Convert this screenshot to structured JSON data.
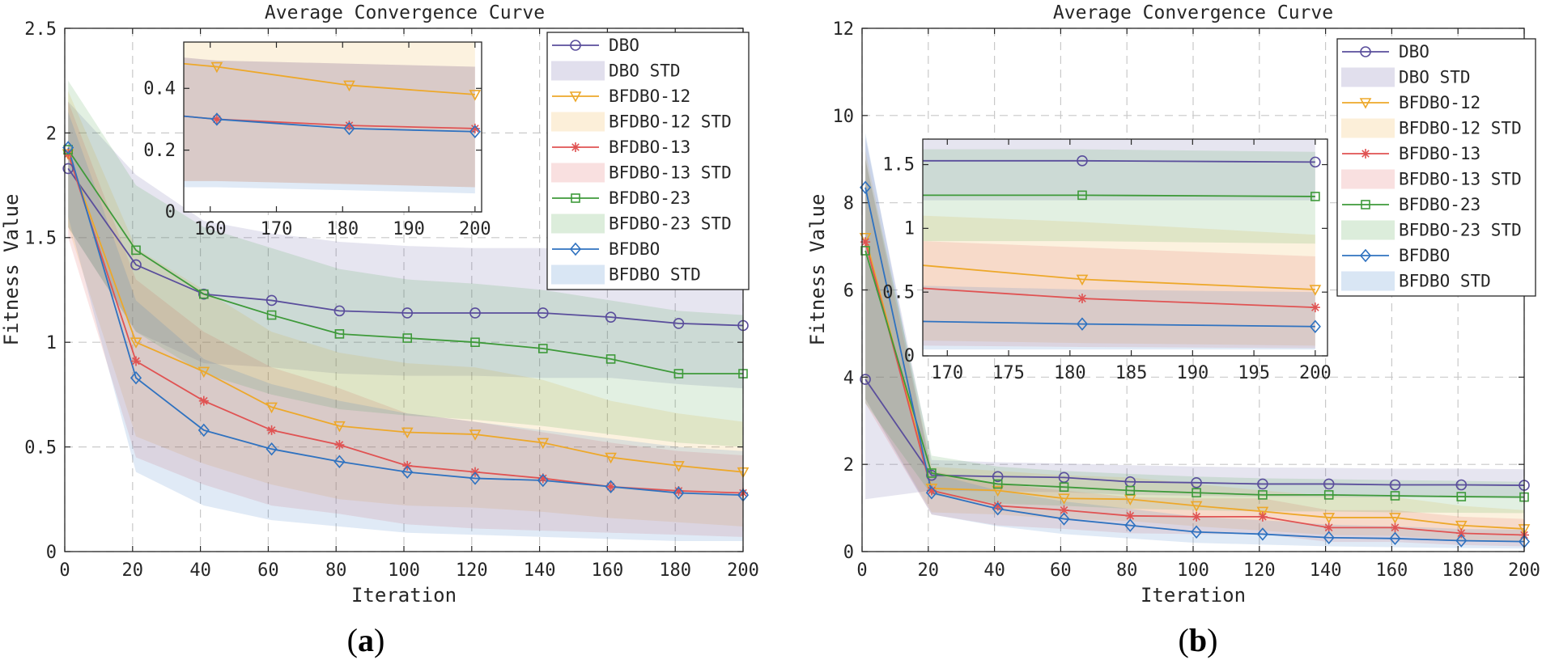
{
  "figure": {
    "panel_labels": [
      {
        "open": "(",
        "letter": "a",
        "close": ")"
      },
      {
        "open": "(",
        "letter": "b",
        "close": ")"
      }
    ]
  },
  "chart_data": [
    {
      "type": "line",
      "title": "Average Convergence Curve",
      "xlabel": "Iteration",
      "ylabel": "Fitness Value",
      "xlim": [
        0,
        200
      ],
      "ylim": [
        0,
        2.5
      ],
      "xticks": [
        0,
        20,
        40,
        60,
        80,
        100,
        120,
        140,
        160,
        180,
        200
      ],
      "yticks": [
        0,
        0.5,
        1,
        1.5,
        2,
        2.5
      ],
      "ytick_labels": [
        "0",
        "0.5",
        "1",
        "1.5",
        "2",
        "2.5"
      ],
      "grid": true,
      "legend_position": "top-right",
      "legend": [
        "DBO",
        "DBO STD",
        "BFDBO-12",
        "BFDBO-12 STD",
        "BFDBO-13",
        "BFDBO-13 STD",
        "BFDBO-23",
        "BFDBO-23 STD",
        "BFDBO",
        "BFDBO STD"
      ],
      "series": [
        {
          "name": "DBO",
          "color": "#5a4e9c",
          "marker": "circle",
          "x": [
            1,
            21,
            41,
            61,
            81,
            101,
            121,
            141,
            161,
            181,
            200
          ],
          "values": [
            1.83,
            1.37,
            1.23,
            1.2,
            1.15,
            1.14,
            1.14,
            1.14,
            1.12,
            1.09,
            1.08
          ],
          "std_upper": [
            2.15,
            1.8,
            1.58,
            1.52,
            1.48,
            1.46,
            1.45,
            1.45,
            1.43,
            1.4,
            1.38
          ],
          "std_lower": [
            1.55,
            1.05,
            0.9,
            0.88,
            0.85,
            0.84,
            0.84,
            0.83,
            0.83,
            0.8,
            0.78
          ]
        },
        {
          "name": "BFDBO-12",
          "color": "#eda82a",
          "marker": "triangle-down",
          "x": [
            1,
            21,
            41,
            61,
            81,
            101,
            121,
            141,
            161,
            181,
            200
          ],
          "values": [
            1.9,
            1.0,
            0.86,
            0.69,
            0.6,
            0.57,
            0.56,
            0.52,
            0.45,
            0.41,
            0.38
          ],
          "std_upper": [
            2.2,
            1.45,
            1.25,
            1.05,
            0.95,
            0.9,
            0.88,
            0.82,
            0.72,
            0.66,
            0.62
          ],
          "std_lower": [
            1.55,
            0.55,
            0.42,
            0.32,
            0.25,
            0.22,
            0.21,
            0.19,
            0.16,
            0.14,
            0.12
          ]
        },
        {
          "name": "BFDBO-13",
          "color": "#e05353",
          "marker": "star",
          "x": [
            1,
            21,
            41,
            61,
            81,
            101,
            121,
            141,
            161,
            181,
            200
          ],
          "values": [
            1.9,
            0.91,
            0.72,
            0.58,
            0.51,
            0.41,
            0.38,
            0.35,
            0.31,
            0.29,
            0.28
          ],
          "std_upper": [
            2.15,
            1.3,
            1.05,
            0.88,
            0.78,
            0.66,
            0.62,
            0.57,
            0.52,
            0.48,
            0.46
          ],
          "std_lower": [
            1.5,
            0.45,
            0.32,
            0.22,
            0.18,
            0.13,
            0.11,
            0.1,
            0.09,
            0.08,
            0.07
          ]
        },
        {
          "name": "BFDBO-23",
          "color": "#3e9a3a",
          "marker": "square",
          "x": [
            1,
            21,
            41,
            61,
            81,
            101,
            121,
            141,
            161,
            181,
            200
          ],
          "values": [
            1.92,
            1.44,
            1.23,
            1.13,
            1.04,
            1.02,
            1.0,
            0.97,
            0.92,
            0.85,
            0.85
          ],
          "std_upper": [
            2.25,
            1.75,
            1.55,
            1.45,
            1.35,
            1.3,
            1.28,
            1.25,
            1.2,
            1.15,
            1.13
          ],
          "std_lower": [
            1.55,
            1.05,
            0.85,
            0.75,
            0.68,
            0.65,
            0.63,
            0.6,
            0.56,
            0.52,
            0.5
          ]
        },
        {
          "name": "BFDBO",
          "color": "#2f72c0",
          "marker": "diamond",
          "x": [
            1,
            21,
            41,
            61,
            81,
            101,
            121,
            141,
            161,
            181,
            200
          ],
          "values": [
            1.93,
            0.83,
            0.58,
            0.49,
            0.43,
            0.38,
            0.35,
            0.34,
            0.31,
            0.28,
            0.27
          ],
          "std_upper": [
            2.1,
            1.2,
            0.92,
            0.8,
            0.72,
            0.66,
            0.62,
            0.58,
            0.54,
            0.5,
            0.48
          ],
          "std_lower": [
            1.6,
            0.38,
            0.22,
            0.15,
            0.12,
            0.09,
            0.08,
            0.07,
            0.06,
            0.05,
            0.05
          ]
        }
      ],
      "inset": {
        "xlim": [
          156,
          201
        ],
        "ylim": [
          0,
          0.55
        ],
        "xticks": [
          160,
          170,
          180,
          190,
          200
        ],
        "yticks": [
          0,
          0.2,
          0.4
        ],
        "ytick_labels": [
          "0",
          "0.2",
          "0.4"
        ],
        "series": [
          {
            "name": "DBO",
            "x": [],
            "values": []
          },
          {
            "name": "BFDBO-12",
            "x": [
              156,
              161,
              181,
              200
            ],
            "values": [
              0.48,
              0.47,
              0.41,
              0.38
            ],
            "std_upper": [
              0.56,
              0.56,
              0.55,
              0.55
            ],
            "std_lower": [
              0.1,
              0.1,
              0.09,
              0.08
            ]
          },
          {
            "name": "BFDBO-13",
            "x": [
              156,
              161,
              181,
              200
            ],
            "values": [
              0.31,
              0.3,
              0.28,
              0.27
            ],
            "std_upper": [
              0.5,
              0.49,
              0.48,
              0.47
            ],
            "std_lower": [
              0.1,
              0.1,
              0.09,
              0.08
            ]
          },
          {
            "name": "BFDBO-23",
            "x": [],
            "values": []
          },
          {
            "name": "BFDBO",
            "x": [
              156,
              161,
              181,
              200
            ],
            "values": [
              0.31,
              0.3,
              0.27,
              0.26
            ],
            "std_upper": [
              0.5,
              0.49,
              0.48,
              0.47
            ],
            "std_lower": [
              0.08,
              0.08,
              0.07,
              0.06
            ]
          }
        ]
      }
    },
    {
      "type": "line",
      "title": "Average Convergence Curve",
      "xlabel": "Iteration",
      "ylabel": "Fitness Value",
      "xlim": [
        0,
        200
      ],
      "ylim": [
        0,
        12
      ],
      "xticks": [
        0,
        20,
        40,
        60,
        80,
        100,
        120,
        140,
        160,
        180,
        200
      ],
      "yticks": [
        0,
        2,
        4,
        6,
        8,
        10,
        12
      ],
      "ytick_labels": [
        "0",
        "2",
        "4",
        "6",
        "8",
        "10",
        "12"
      ],
      "grid": true,
      "legend_position": "top-right",
      "legend": [
        "DBO",
        "DBO STD",
        "BFDBO-12",
        "BFDBO-12 STD",
        "BFDBO-13",
        "BFDBO-13 STD",
        "BFDBO-23",
        "BFDBO-23 STD",
        "BFDBO",
        "BFDBO STD"
      ],
      "series": [
        {
          "name": "DBO",
          "color": "#5a4e9c",
          "marker": "circle",
          "x": [
            1,
            21,
            41,
            61,
            81,
            101,
            121,
            141,
            161,
            181,
            200
          ],
          "values": [
            3.95,
            1.75,
            1.72,
            1.7,
            1.6,
            1.58,
            1.55,
            1.55,
            1.53,
            1.53,
            1.52
          ],
          "std_upper": [
            9.5,
            2.1,
            2.05,
            2.02,
            1.98,
            1.95,
            1.93,
            1.92,
            1.9,
            1.9,
            1.89
          ],
          "std_lower": [
            1.2,
            1.4,
            1.38,
            1.36,
            1.3,
            1.28,
            1.26,
            1.25,
            1.24,
            1.24,
            1.22
          ]
        },
        {
          "name": "BFDBO-12",
          "color": "#eda82a",
          "marker": "triangle-down",
          "x": [
            1,
            21,
            41,
            61,
            81,
            101,
            121,
            141,
            161,
            181,
            200
          ],
          "values": [
            7.2,
            1.45,
            1.4,
            1.22,
            1.2,
            1.05,
            0.92,
            0.78,
            0.78,
            0.6,
            0.52
          ],
          "std_upper": [
            9.2,
            1.95,
            1.85,
            1.75,
            1.7,
            1.55,
            1.4,
            1.28,
            1.25,
            1.05,
            0.95
          ],
          "std_lower": [
            3.5,
            0.9,
            0.85,
            0.75,
            0.7,
            0.58,
            0.48,
            0.38,
            0.36,
            0.25,
            0.22
          ]
        },
        {
          "name": "BFDBO-13",
          "color": "#e05353",
          "marker": "star",
          "x": [
            1,
            21,
            41,
            61,
            81,
            101,
            121,
            141,
            161,
            181,
            200
          ],
          "values": [
            7.1,
            1.4,
            1.05,
            0.95,
            0.82,
            0.8,
            0.8,
            0.55,
            0.55,
            0.42,
            0.38
          ],
          "std_upper": [
            9.0,
            1.85,
            1.55,
            1.4,
            1.25,
            1.22,
            1.22,
            0.95,
            0.95,
            0.8,
            0.75
          ],
          "std_lower": [
            3.4,
            0.85,
            0.6,
            0.52,
            0.42,
            0.4,
            0.4,
            0.22,
            0.22,
            0.15,
            0.12
          ]
        },
        {
          "name": "BFDBO-23",
          "color": "#3e9a3a",
          "marker": "square",
          "x": [
            1,
            21,
            41,
            61,
            81,
            101,
            121,
            141,
            161,
            181,
            200
          ],
          "values": [
            6.9,
            1.8,
            1.55,
            1.48,
            1.4,
            1.35,
            1.3,
            1.3,
            1.28,
            1.26,
            1.25
          ],
          "std_upper": [
            9.0,
            2.2,
            1.95,
            1.85,
            1.78,
            1.72,
            1.68,
            1.66,
            1.64,
            1.62,
            1.6
          ],
          "std_lower": [
            3.4,
            1.3,
            1.1,
            1.05,
            0.98,
            0.95,
            0.92,
            0.92,
            0.9,
            0.89,
            0.88
          ]
        },
        {
          "name": "BFDBO",
          "color": "#2f72c0",
          "marker": "diamond",
          "x": [
            1,
            21,
            41,
            61,
            81,
            101,
            121,
            141,
            161,
            181,
            200
          ],
          "values": [
            8.35,
            1.35,
            0.98,
            0.75,
            0.6,
            0.45,
            0.4,
            0.32,
            0.3,
            0.25,
            0.23
          ],
          "std_upper": [
            9.6,
            1.8,
            1.4,
            1.15,
            0.98,
            0.8,
            0.72,
            0.62,
            0.58,
            0.52,
            0.5
          ],
          "std_lower": [
            3.5,
            0.85,
            0.58,
            0.4,
            0.3,
            0.2,
            0.16,
            0.12,
            0.1,
            0.08,
            0.07
          ]
        }
      ],
      "inset": {
        "xlim": [
          168,
          201
        ],
        "ylim": [
          0,
          1.7
        ],
        "xticks": [
          170,
          175,
          180,
          185,
          190,
          195,
          200
        ],
        "yticks": [
          0,
          0.5,
          1,
          1.5
        ],
        "ytick_labels": [
          "0",
          "0.5",
          "1",
          "1.5"
        ],
        "series": [
          {
            "name": "DBO",
            "x": [
              168,
              181,
              200
            ],
            "values": [
              1.53,
              1.53,
              1.52
            ],
            "std_upper": [
              1.7,
              1.7,
              1.7
            ],
            "std_lower": [
              1.22,
              1.22,
              1.22
            ]
          },
          {
            "name": "BFDBO-12",
            "x": [
              168,
              181,
              200
            ],
            "values": [
              0.71,
              0.6,
              0.52
            ],
            "std_upper": [
              1.1,
              1.05,
              0.95
            ],
            "std_lower": [
              0.12,
              0.1,
              0.08
            ]
          },
          {
            "name": "BFDBO-13",
            "x": [
              168,
              181,
              200
            ],
            "values": [
              0.53,
              0.45,
              0.38
            ],
            "std_upper": [
              0.9,
              0.85,
              0.78
            ],
            "std_lower": [
              0.08,
              0.07,
              0.06
            ]
          },
          {
            "name": "BFDBO-23",
            "x": [
              168,
              181,
              200
            ],
            "values": [
              1.26,
              1.26,
              1.25
            ],
            "std_upper": [
              1.62,
              1.62,
              1.6
            ],
            "std_lower": [
              0.9,
              0.9,
              0.88
            ]
          },
          {
            "name": "BFDBO",
            "x": [
              168,
              181,
              200
            ],
            "values": [
              0.27,
              0.25,
              0.23
            ],
            "std_upper": [
              0.55,
              0.52,
              0.5
            ],
            "std_lower": [
              0.05,
              0.05,
              0.05
            ]
          }
        ]
      }
    }
  ]
}
